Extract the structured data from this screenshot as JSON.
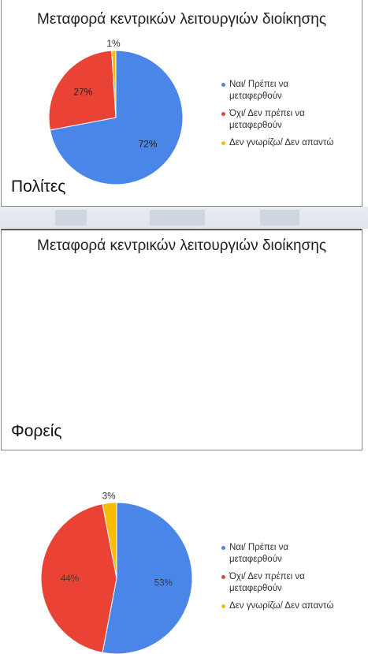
{
  "panels": [
    {
      "title": "Μεταφορά κεντρικών λειτουργιών διοίκησης",
      "group_label": "Πολίτες"
    },
    {
      "title": "Μεταφορά κεντρικών λειτουργιών διοίκησης",
      "group_label": "Φορείς"
    }
  ],
  "legend": [
    {
      "label": "Ναι/  Πρέπει να\nμεταφερθούν",
      "color": "#4a86e8"
    },
    {
      "label": "Όχι/ Δεν πρέπει να\nμεταφερθούν",
      "color": "#ea4335"
    },
    {
      "label": "Δεν γνωρίζω/ Δεν απαντώ",
      "color": "#fbbc04"
    }
  ],
  "chart_data": [
    {
      "type": "pie",
      "title": "Μεταφορά κεντρικών λειτουργιών διοίκησης",
      "group": "Πολίτες",
      "categories": [
        "Ναι/  Πρέπει να μεταφερθούν",
        "Όχι/ Δεν πρέπει να μεταφερθούν",
        "Δεν γνωρίζω/ Δεν απαντώ"
      ],
      "values": [
        72,
        27,
        1
      ],
      "labels": [
        "72%",
        "27%",
        "1%"
      ],
      "colors": [
        "#4a86e8",
        "#ea4335",
        "#fbbc04"
      ],
      "legend_position": "right"
    },
    {
      "type": "pie",
      "title": "Μεταφορά κεντρικών λειτουργιών διοίκησης",
      "group": "Φορείς",
      "categories": [
        "Ναι/  Πρέπει να μεταφερθούν",
        "Όχι/ Δεν πρέπει να μεταφερθούν",
        "Δεν γνωρίζω/ Δεν απαντώ"
      ],
      "values": [
        53,
        44,
        3
      ],
      "labels": [
        "53%",
        "44%",
        "3%"
      ],
      "colors": [
        "#4a86e8",
        "#ea4335",
        "#fbbc04"
      ],
      "legend_position": "right"
    }
  ]
}
